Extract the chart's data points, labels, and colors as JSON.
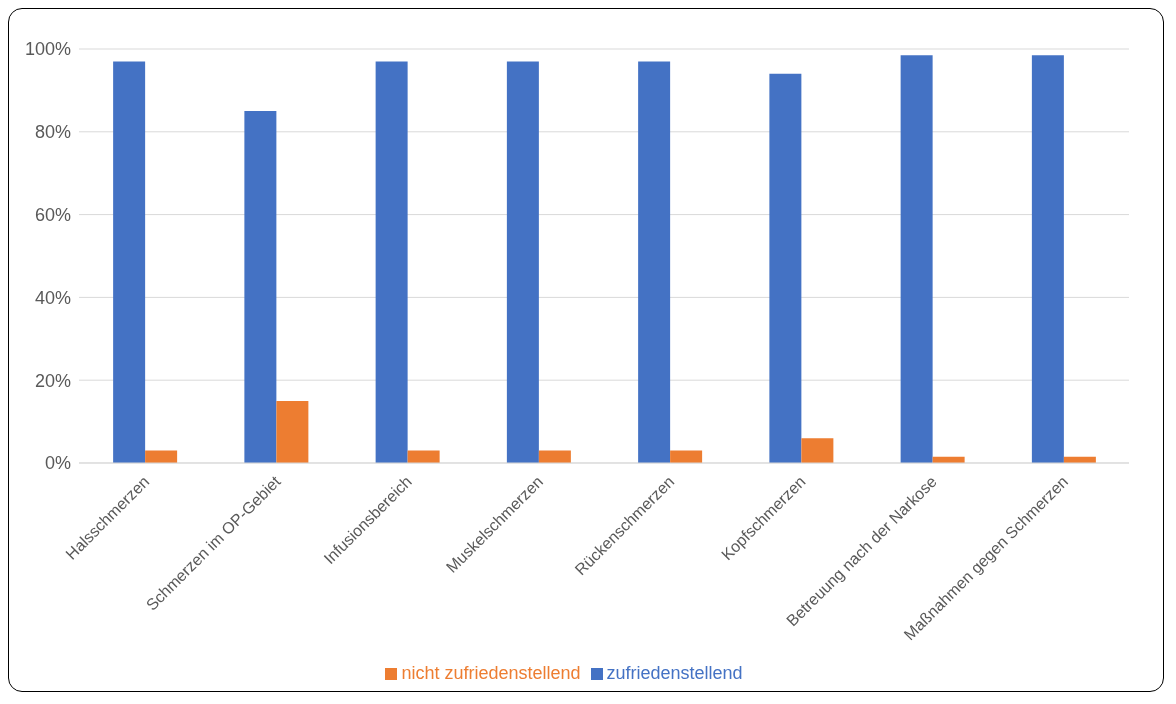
{
  "chart_data": {
    "type": "bar",
    "categories": [
      "Halsschmerzen",
      "Schmerzen im OP-Gebiet",
      "Infusionsbereich",
      "Muskelschmerzen",
      "Rückenschmerzen",
      "Kopfschmerzen",
      "Betreuung nach der Narkose",
      "Maßnahmen gegen Schmerzen"
    ],
    "series": [
      {
        "name": "zufriedenstellend",
        "color": "#4472c4",
        "values": [
          97,
          85,
          97,
          97,
          97,
          94,
          98.5,
          98.5
        ]
      },
      {
        "name": "nicht zufriedenstellend",
        "color": "#ed7d31",
        "values": [
          3,
          15,
          3,
          3,
          3,
          6,
          1.5,
          1.5
        ]
      }
    ],
    "ylim": [
      0,
      100
    ],
    "yticks": [
      {
        "value": 0,
        "label": "0%"
      },
      {
        "value": 20,
        "label": "20%"
      },
      {
        "value": 40,
        "label": "40%"
      },
      {
        "value": 60,
        "label": "60%"
      },
      {
        "value": 80,
        "label": "80%"
      },
      {
        "value": 100,
        "label": "100%"
      }
    ],
    "grid": "y",
    "legend": "bottom"
  }
}
